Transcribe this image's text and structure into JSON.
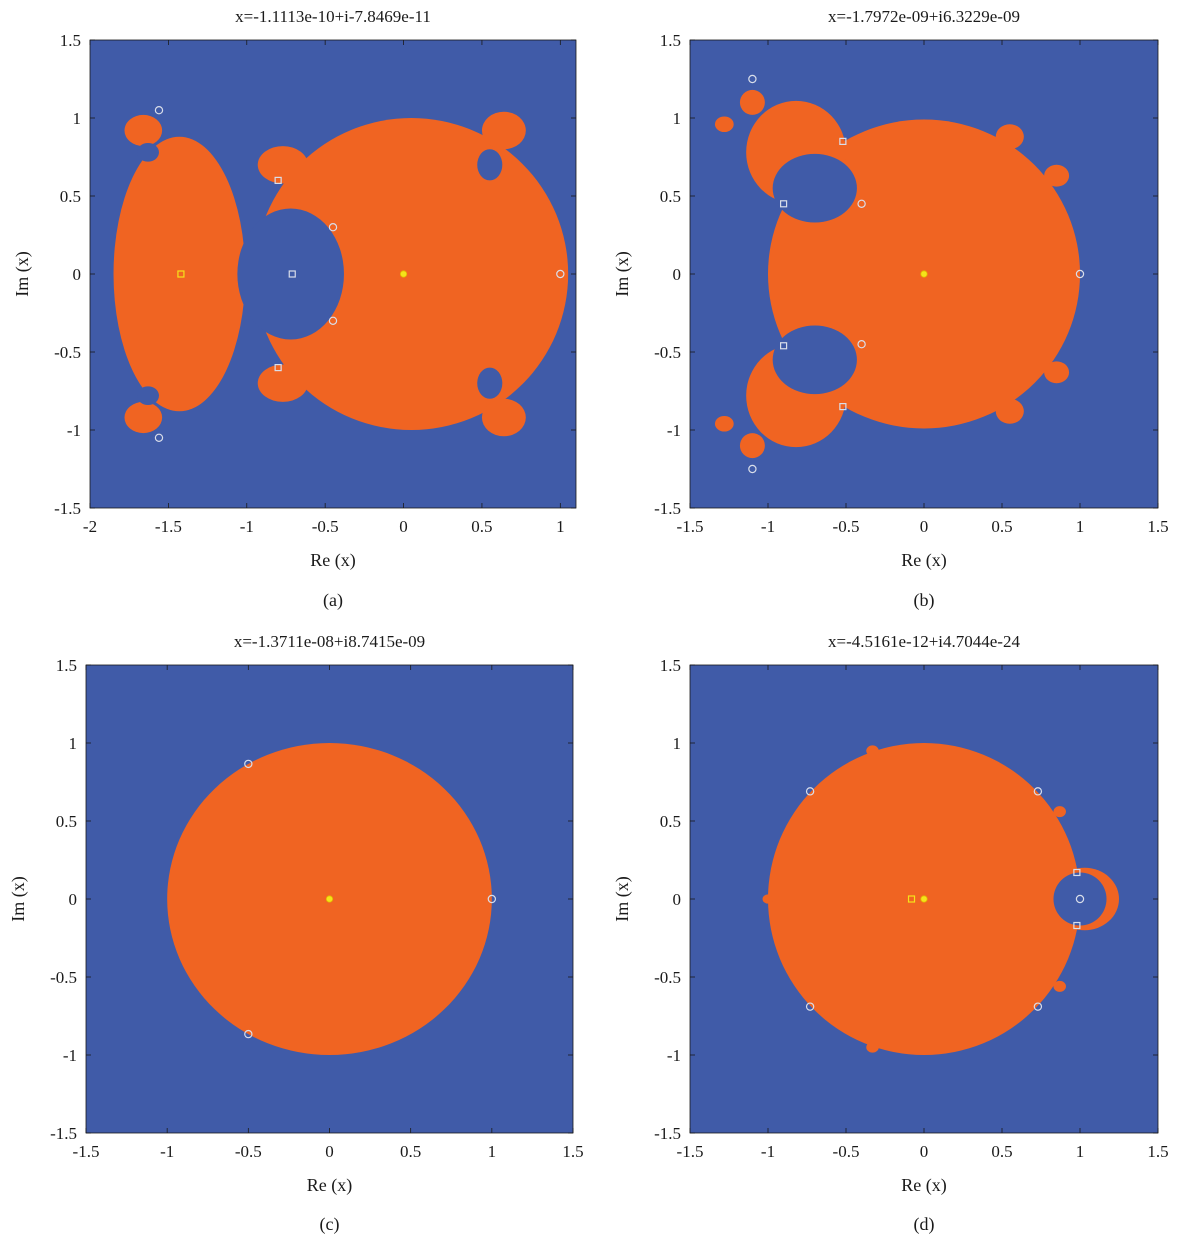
{
  "colors": {
    "basin_outside": "#405BA8",
    "basin_inside": "#F06422",
    "marker_root": "#F5E31A",
    "marker_point": "#D9DEEA",
    "axis": "#1a1a1a"
  },
  "axis_labels": {
    "x": "Re (x)",
    "y": "Im (x)"
  },
  "panels": [
    {
      "id": "a",
      "caption": "(a)",
      "title": "x=-1.1113e-10+i-7.8469e-11",
      "xlim": [
        -2,
        1.1
      ],
      "ylim": [
        -1.5,
        1.5
      ],
      "xticks": [
        -2,
        -1.5,
        -1,
        -0.5,
        0,
        0.5,
        1
      ],
      "xtick_labels": [
        "-2",
        "-1.5",
        "-1",
        "-0.5",
        "0",
        "0.5",
        "1"
      ],
      "yticks": [
        -1.5,
        -1,
        -0.5,
        0,
        0.5,
        1,
        1.5
      ],
      "ytick_labels": [
        "-1.5",
        "-1",
        "-0.5",
        "0",
        "0.5",
        "1",
        "1.5"
      ],
      "regions": [
        {
          "kind": "ellipse",
          "cx": 0.05,
          "cy": 0,
          "rx": 1.0,
          "ry": 1.0
        },
        {
          "kind": "ellipse",
          "cx": -1.43,
          "cy": 0,
          "rx": 0.42,
          "ry": 0.88
        },
        {
          "kind": "ellipse",
          "cx": -0.77,
          "cy": 0.7,
          "rx": 0.16,
          "ry": 0.12
        },
        {
          "kind": "ellipse",
          "cx": -0.77,
          "cy": -0.7,
          "rx": 0.16,
          "ry": 0.12
        },
        {
          "kind": "ellipse",
          "cx": -1.66,
          "cy": 0.92,
          "rx": 0.12,
          "ry": 0.1
        },
        {
          "kind": "ellipse",
          "cx": -1.66,
          "cy": -0.92,
          "rx": 0.12,
          "ry": 0.1
        },
        {
          "kind": "ellipse",
          "cx": 0.64,
          "cy": 0.92,
          "rx": 0.14,
          "ry": 0.12
        },
        {
          "kind": "ellipse",
          "cx": 0.64,
          "cy": -0.92,
          "rx": 0.14,
          "ry": 0.12
        }
      ],
      "holes": [
        {
          "kind": "ellipse",
          "cx": -0.72,
          "cy": 0,
          "rx": 0.34,
          "ry": 0.42
        },
        {
          "kind": "ellipse",
          "cx": 0.55,
          "cy": 0.7,
          "rx": 0.08,
          "ry": 0.1
        },
        {
          "kind": "ellipse",
          "cx": 0.55,
          "cy": -0.7,
          "rx": 0.08,
          "ry": 0.1
        },
        {
          "kind": "ellipse",
          "cx": -1.63,
          "cy": 0.78,
          "rx": 0.07,
          "ry": 0.06
        },
        {
          "kind": "ellipse",
          "cx": -1.63,
          "cy": -0.78,
          "rx": 0.07,
          "ry": 0.06
        }
      ],
      "markers": [
        {
          "shape": "circle",
          "color": "point",
          "x": -1.56,
          "y": 1.05
        },
        {
          "shape": "circle",
          "color": "point",
          "x": -1.56,
          "y": -1.05
        },
        {
          "shape": "square",
          "color": "point",
          "x": -0.8,
          "y": 0.6
        },
        {
          "shape": "square",
          "color": "point",
          "x": -0.8,
          "y": -0.6
        },
        {
          "shape": "square",
          "color": "point",
          "x": -0.71,
          "y": 0
        },
        {
          "shape": "circle",
          "color": "point",
          "x": -0.45,
          "y": 0.3
        },
        {
          "shape": "circle",
          "color": "point",
          "x": -0.45,
          "y": -0.3
        },
        {
          "shape": "circle",
          "color": "point",
          "x": 1.0,
          "y": 0
        },
        {
          "shape": "square",
          "color": "root",
          "x": -1.42,
          "y": 0
        },
        {
          "shape": "dot",
          "color": "root",
          "x": 0,
          "y": 0
        }
      ]
    },
    {
      "id": "b",
      "caption": "(b)",
      "title": "x=-1.7972e-09+i6.3229e-09",
      "xlim": [
        -1.5,
        1.5
      ],
      "ylim": [
        -1.5,
        1.5
      ],
      "xticks": [
        -1.5,
        -1,
        -0.5,
        0,
        0.5,
        1,
        1.5
      ],
      "xtick_labels": [
        "-1.5",
        "-1",
        "-0.5",
        "0",
        "0.5",
        "1",
        "1.5"
      ],
      "yticks": [
        -1.5,
        -1,
        -0.5,
        0,
        0.5,
        1,
        1.5
      ],
      "ytick_labels": [
        "-1.5",
        "-1",
        "-0.5",
        "0",
        "0.5",
        "1",
        "1.5"
      ],
      "regions": [
        {
          "kind": "ellipse",
          "cx": 0,
          "cy": 0,
          "rx": 1.0,
          "ry": 0.99
        },
        {
          "kind": "ellipse",
          "cx": -0.82,
          "cy": 0.78,
          "rx": 0.32,
          "ry": 0.33
        },
        {
          "kind": "ellipse",
          "cx": -0.82,
          "cy": -0.78,
          "rx": 0.32,
          "ry": 0.33
        },
        {
          "kind": "ellipse",
          "cx": -1.1,
          "cy": 1.1,
          "rx": 0.08,
          "ry": 0.08
        },
        {
          "kind": "ellipse",
          "cx": -1.1,
          "cy": -1.1,
          "rx": 0.08,
          "ry": 0.08
        },
        {
          "kind": "ellipse",
          "cx": 0.55,
          "cy": 0.88,
          "rx": 0.09,
          "ry": 0.08
        },
        {
          "kind": "ellipse",
          "cx": 0.55,
          "cy": -0.88,
          "rx": 0.09,
          "ry": 0.08
        },
        {
          "kind": "ellipse",
          "cx": 0.85,
          "cy": 0.63,
          "rx": 0.08,
          "ry": 0.07
        },
        {
          "kind": "ellipse",
          "cx": 0.85,
          "cy": -0.63,
          "rx": 0.08,
          "ry": 0.07
        },
        {
          "kind": "ellipse",
          "cx": -1.28,
          "cy": 0.96,
          "rx": 0.06,
          "ry": 0.05
        },
        {
          "kind": "ellipse",
          "cx": -1.28,
          "cy": -0.96,
          "rx": 0.06,
          "ry": 0.05
        }
      ],
      "holes": [
        {
          "kind": "ellipse",
          "cx": -0.7,
          "cy": 0.55,
          "rx": 0.27,
          "ry": 0.22
        },
        {
          "kind": "ellipse",
          "cx": -0.7,
          "cy": -0.55,
          "rx": 0.27,
          "ry": 0.22
        }
      ],
      "markers": [
        {
          "shape": "circle",
          "color": "point",
          "x": -1.1,
          "y": 1.25
        },
        {
          "shape": "circle",
          "color": "point",
          "x": -1.1,
          "y": -1.25
        },
        {
          "shape": "square",
          "color": "point",
          "x": -0.52,
          "y": 0.85
        },
        {
          "shape": "square",
          "color": "point",
          "x": -0.52,
          "y": -0.85
        },
        {
          "shape": "square",
          "color": "point",
          "x": -0.9,
          "y": 0.45
        },
        {
          "shape": "square",
          "color": "point",
          "x": -0.9,
          "y": -0.46
        },
        {
          "shape": "circle",
          "color": "point",
          "x": -0.4,
          "y": 0.45
        },
        {
          "shape": "circle",
          "color": "point",
          "x": -0.4,
          "y": -0.45
        },
        {
          "shape": "circle",
          "color": "point",
          "x": 1.0,
          "y": 0
        },
        {
          "shape": "dot",
          "color": "root",
          "x": 0,
          "y": 0
        }
      ]
    },
    {
      "id": "c",
      "caption": "(c)",
      "title": "x=-1.3711e-08+i8.7415e-09",
      "xlim": [
        -1.5,
        1.5
      ],
      "ylim": [
        -1.5,
        1.5
      ],
      "xticks": [
        -1.5,
        -1,
        -0.5,
        0,
        0.5,
        1,
        1.5
      ],
      "xtick_labels": [
        "-1.5",
        "-1",
        "-0.5",
        "0",
        "0.5",
        "1",
        "1.5"
      ],
      "yticks": [
        -1.5,
        -1,
        -0.5,
        0,
        0.5,
        1,
        1.5
      ],
      "ytick_labels": [
        "-1.5",
        "-1",
        "-0.5",
        "0",
        "0.5",
        "1",
        "1.5"
      ],
      "regions": [
        {
          "kind": "ellipse",
          "cx": 0,
          "cy": 0,
          "rx": 1.0,
          "ry": 1.0
        }
      ],
      "holes": [],
      "markers": [
        {
          "shape": "circle",
          "color": "point",
          "x": -0.5,
          "y": 0.866
        },
        {
          "shape": "circle",
          "color": "point",
          "x": -0.5,
          "y": -0.866
        },
        {
          "shape": "circle",
          "color": "point",
          "x": 1.0,
          "y": 0
        },
        {
          "shape": "dot",
          "color": "root",
          "x": 0,
          "y": 0
        }
      ]
    },
    {
      "id": "d",
      "caption": "(d)",
      "title": "x=-4.5161e-12+i4.7044e-24",
      "xlim": [
        -1.5,
        1.5
      ],
      "ylim": [
        -1.5,
        1.5
      ],
      "xticks": [
        -1.5,
        -1,
        -0.5,
        0,
        0.5,
        1,
        1.5
      ],
      "xtick_labels": [
        "-1.5",
        "-1",
        "-0.5",
        "0",
        "0.5",
        "1",
        "1.5"
      ],
      "yticks": [
        -1.5,
        -1,
        -0.5,
        0,
        0.5,
        1,
        1.5
      ],
      "ytick_labels": [
        "-1.5",
        "-1",
        "-0.5",
        "0",
        "0.5",
        "1",
        "1.5"
      ],
      "regions": [
        {
          "kind": "ellipse",
          "cx": 0,
          "cy": 0,
          "rx": 1.0,
          "ry": 1.0
        },
        {
          "kind": "ellipse",
          "cx": 1.03,
          "cy": 0,
          "rx": 0.22,
          "ry": 0.2
        },
        {
          "kind": "ellipse",
          "cx": -0.33,
          "cy": 0.95,
          "rx": 0.04,
          "ry": 0.035
        },
        {
          "kind": "ellipse",
          "cx": -0.33,
          "cy": -0.95,
          "rx": 0.04,
          "ry": 0.035
        },
        {
          "kind": "ellipse",
          "cx": 0.87,
          "cy": 0.56,
          "rx": 0.04,
          "ry": 0.035
        },
        {
          "kind": "ellipse",
          "cx": 0.87,
          "cy": -0.56,
          "rx": 0.04,
          "ry": 0.035
        },
        {
          "kind": "ellipse",
          "cx": -1.0,
          "cy": 0,
          "rx": 0.035,
          "ry": 0.03
        }
      ],
      "holes": [
        {
          "kind": "ellipse",
          "cx": 1.0,
          "cy": 0,
          "rx": 0.17,
          "ry": 0.17
        }
      ],
      "markers": [
        {
          "shape": "circle",
          "color": "point",
          "x": -0.73,
          "y": 0.69
        },
        {
          "shape": "circle",
          "color": "point",
          "x": -0.73,
          "y": -0.69
        },
        {
          "shape": "circle",
          "color": "point",
          "x": 0.73,
          "y": 0.69
        },
        {
          "shape": "circle",
          "color": "point",
          "x": 0.73,
          "y": -0.69
        },
        {
          "shape": "square",
          "color": "point",
          "x": 0.98,
          "y": 0.17
        },
        {
          "shape": "square",
          "color": "point",
          "x": 0.98,
          "y": -0.17
        },
        {
          "shape": "circle",
          "color": "point",
          "x": 1.0,
          "y": 0
        },
        {
          "shape": "square",
          "color": "root",
          "x": -0.08,
          "y": 0
        },
        {
          "shape": "dot",
          "color": "root",
          "x": 0,
          "y": 0
        }
      ]
    }
  ]
}
